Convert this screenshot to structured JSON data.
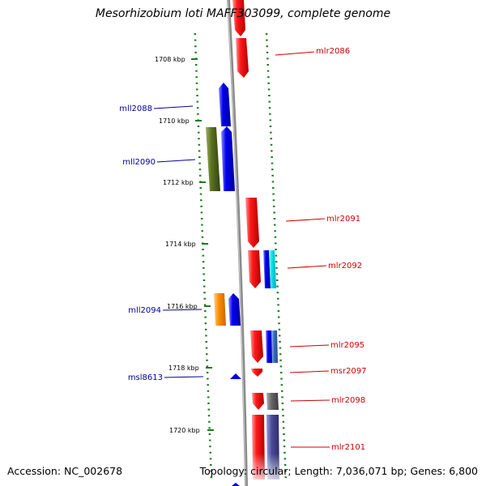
{
  "title": "Mesorhizobium loti MAFF303099, complete genome",
  "accession": "Accession: NC_002678",
  "topology": "Topology: circular; Length: 7,036,071 bp; Genes: 6,800",
  "colors": {
    "backbone": "#7a7a7a",
    "tick": "#1f7a1f",
    "forward_label": "#cc0000",
    "reverse_label": "#000099",
    "red": "#ee1111",
    "blue": "#0000ee",
    "olive": "#556b1a",
    "orange": "#ff8c00",
    "cyan": "#00e5ee",
    "steel": "#3b6fc0",
    "gray": "#666666",
    "slate": "#4a4a99"
  },
  "scale": [
    {
      "label": "1708 kbp"
    },
    {
      "label": "1710 kbp"
    },
    {
      "label": "1712 kbp"
    },
    {
      "label": "1714 kbp"
    },
    {
      "label": "1716 kbp"
    },
    {
      "label": "1718 kbp"
    },
    {
      "label": "1720 kbp"
    }
  ],
  "labels": [
    {
      "text": "mlr2086",
      "strand": "forward"
    },
    {
      "text": "mll2088",
      "strand": "reverse"
    },
    {
      "text": "mll2090",
      "strand": "reverse"
    },
    {
      "text": "mlr2091",
      "strand": "forward"
    },
    {
      "text": "mlr2092",
      "strand": "forward"
    },
    {
      "text": "mll2094",
      "strand": "reverse"
    },
    {
      "text": "mlr2095",
      "strand": "forward"
    },
    {
      "text": "msr2097",
      "strand": "forward"
    },
    {
      "text": "mlr2098",
      "strand": "forward"
    },
    {
      "text": "msl8613",
      "strand": "reverse"
    },
    {
      "text": "mlr2101",
      "strand": "forward"
    }
  ]
}
